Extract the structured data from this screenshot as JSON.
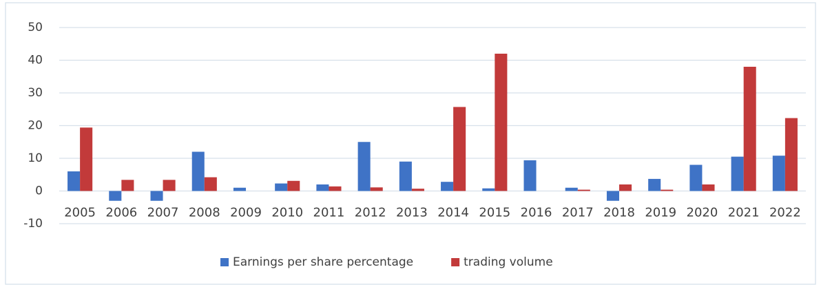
{
  "chart_data": {
    "type": "bar",
    "categories": [
      "2005",
      "2006",
      "2007",
      "2008",
      "2009",
      "2010",
      "2011",
      "2012",
      "2013",
      "2014",
      "2015",
      "2016",
      "2017",
      "2018",
      "2019",
      "2020",
      "2021",
      "2022"
    ],
    "series": [
      {
        "name": "Earnings per share percentage",
        "color": "#3f73c6",
        "values": [
          6,
          -3,
          -3,
          12,
          1,
          2.3,
          2,
          15,
          9,
          2.8,
          0.8,
          9.4,
          1,
          -3,
          3.7,
          8,
          10.5,
          10.8
        ]
      },
      {
        "name": "trading volume",
        "color": "#c23a3a",
        "values": [
          19.4,
          3.4,
          3.4,
          4.2,
          0,
          3.1,
          1.4,
          1.1,
          0.7,
          25.7,
          42,
          0,
          0.4,
          2,
          0.4,
          2,
          38,
          22.3
        ]
      }
    ],
    "ylim": [
      -10,
      50
    ],
    "yticks": [
      -10,
      0,
      10,
      20,
      30,
      40,
      50
    ],
    "grid": true,
    "legend": "bottom"
  }
}
